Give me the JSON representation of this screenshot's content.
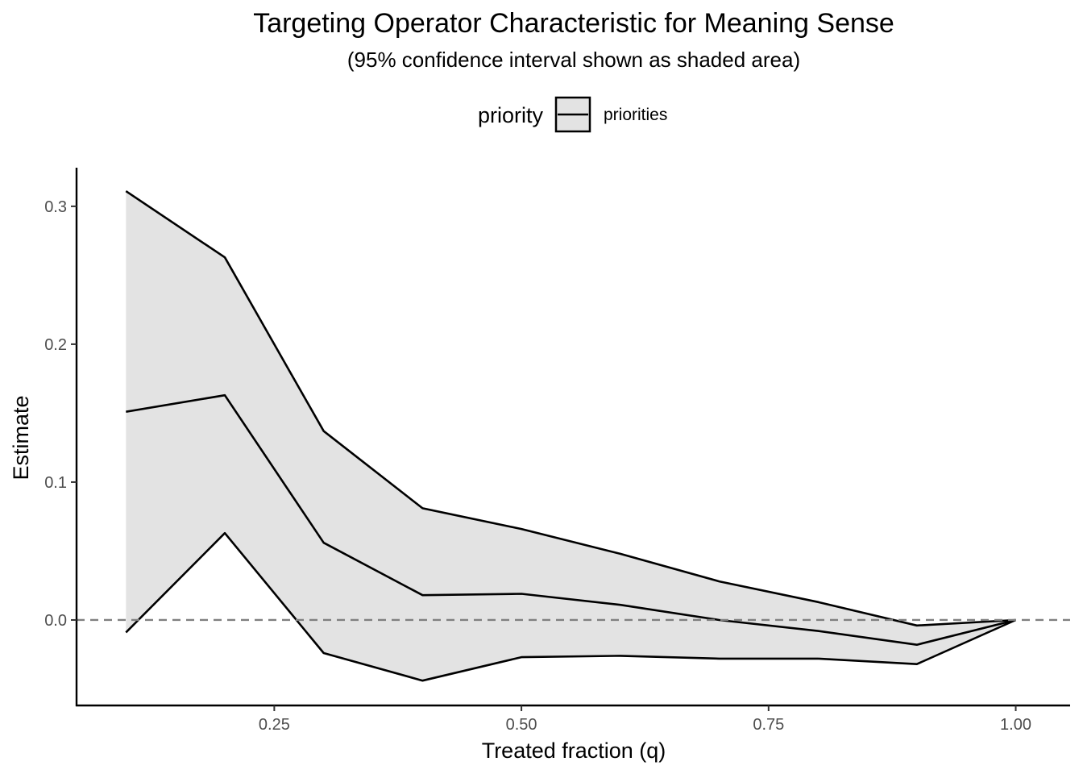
{
  "chart_data": {
    "type": "line",
    "title": "Targeting Operator Characteristic for Meaning Sense",
    "subtitle": "(95% confidence interval shown as shaded area)",
    "xlabel": "Treated fraction (q)",
    "ylabel": "Estimate",
    "xlim": [
      0.05,
      1.055
    ],
    "ylim": [
      -0.062,
      0.328
    ],
    "x_ticks": [
      0.25,
      0.5,
      0.75,
      1.0
    ],
    "x_tick_labels": [
      "0.25",
      "0.50",
      "0.75",
      "1.00"
    ],
    "y_ticks": [
      0.0,
      0.1,
      0.2,
      0.3
    ],
    "y_tick_labels": [
      "0.0",
      "0.1",
      "0.2",
      "0.3"
    ],
    "legend": {
      "title": "priority",
      "position": "top",
      "entries": [
        "priorities"
      ]
    },
    "reference_line": {
      "y": 0.0,
      "style": "dashed",
      "color": "#808080"
    },
    "ribbon_fill": "#e3e3e3",
    "line_color": "#000000",
    "grid": false,
    "x": [
      0.1,
      0.2,
      0.3,
      0.4,
      0.5,
      0.6,
      0.7,
      0.8,
      0.9,
      1.0
    ],
    "series": [
      {
        "name": "priorities",
        "estimate": [
          0.151,
          0.163,
          0.056,
          0.018,
          0.019,
          0.011,
          0.0,
          -0.008,
          -0.018,
          0.0
        ],
        "lower": [
          -0.009,
          0.063,
          -0.024,
          -0.044,
          -0.027,
          -0.026,
          -0.028,
          -0.028,
          -0.032,
          0.0
        ],
        "upper": [
          0.311,
          0.263,
          0.137,
          0.081,
          0.066,
          0.048,
          0.028,
          0.013,
          -0.004,
          0.0
        ]
      }
    ]
  }
}
